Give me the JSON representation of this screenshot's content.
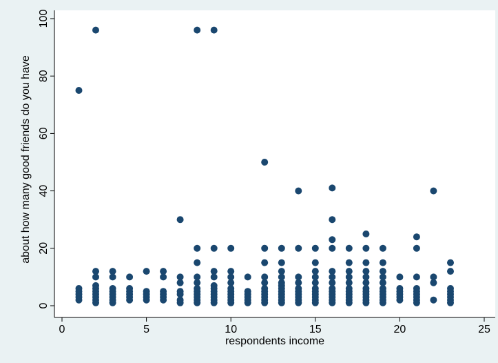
{
  "chart_data": {
    "type": "scatter",
    "title": "",
    "xlabel": "respondents income",
    "ylabel": "about how many good friends do you have",
    "xlim": [
      0,
      25
    ],
    "ylim": [
      0,
      100
    ],
    "xticks": [
      0,
      5,
      10,
      15,
      20,
      25
    ],
    "yticks": [
      0,
      20,
      40,
      60,
      80,
      100
    ],
    "grid": false,
    "colors": {
      "background": "#eaf2f3",
      "plot_background": "#ffffff",
      "marker": "#1a476f",
      "axis": "#000000"
    },
    "points": [
      [
        1,
        75
      ],
      [
        1,
        6
      ],
      [
        1,
        5
      ],
      [
        1,
        4
      ],
      [
        1,
        3
      ],
      [
        1,
        2
      ],
      [
        2,
        96
      ],
      [
        2,
        12
      ],
      [
        2,
        10
      ],
      [
        2,
        7
      ],
      [
        2,
        6
      ],
      [
        2,
        5
      ],
      [
        2,
        4
      ],
      [
        2,
        3
      ],
      [
        2,
        2
      ],
      [
        2,
        1
      ],
      [
        3,
        12
      ],
      [
        3,
        10
      ],
      [
        3,
        6
      ],
      [
        3,
        5
      ],
      [
        3,
        4
      ],
      [
        3,
        3
      ],
      [
        3,
        2
      ],
      [
        3,
        1
      ],
      [
        4,
        10
      ],
      [
        4,
        6
      ],
      [
        4,
        5
      ],
      [
        4,
        4
      ],
      [
        4,
        3
      ],
      [
        4,
        2
      ],
      [
        5,
        12
      ],
      [
        5,
        5
      ],
      [
        5,
        4
      ],
      [
        5,
        3
      ],
      [
        5,
        2
      ],
      [
        6,
        12
      ],
      [
        6,
        10
      ],
      [
        6,
        5
      ],
      [
        6,
        4
      ],
      [
        6,
        3
      ],
      [
        6,
        2
      ],
      [
        7,
        30
      ],
      [
        7,
        10
      ],
      [
        7,
        8
      ],
      [
        7,
        5
      ],
      [
        7,
        4
      ],
      [
        7,
        2
      ],
      [
        7,
        1
      ],
      [
        8,
        96
      ],
      [
        8,
        20
      ],
      [
        8,
        15
      ],
      [
        8,
        10
      ],
      [
        8,
        8
      ],
      [
        8,
        6
      ],
      [
        8,
        5
      ],
      [
        8,
        4
      ],
      [
        8,
        3
      ],
      [
        8,
        2
      ],
      [
        8,
        1
      ],
      [
        9,
        96
      ],
      [
        9,
        20
      ],
      [
        9,
        12
      ],
      [
        9,
        10
      ],
      [
        9,
        7
      ],
      [
        9,
        6
      ],
      [
        9,
        5
      ],
      [
        9,
        4
      ],
      [
        9,
        3
      ],
      [
        9,
        2
      ],
      [
        9,
        1
      ],
      [
        10,
        20
      ],
      [
        10,
        12
      ],
      [
        10,
        10
      ],
      [
        10,
        8
      ],
      [
        10,
        6
      ],
      [
        10,
        5
      ],
      [
        10,
        4
      ],
      [
        10,
        3
      ],
      [
        10,
        2
      ],
      [
        10,
        1
      ],
      [
        11,
        10
      ],
      [
        11,
        5
      ],
      [
        11,
        4
      ],
      [
        11,
        3
      ],
      [
        11,
        2
      ],
      [
        11,
        1
      ],
      [
        12,
        50
      ],
      [
        12,
        20
      ],
      [
        12,
        15
      ],
      [
        12,
        10
      ],
      [
        12,
        8
      ],
      [
        12,
        6
      ],
      [
        12,
        5
      ],
      [
        12,
        4
      ],
      [
        12,
        3
      ],
      [
        12,
        2
      ],
      [
        12,
        1
      ],
      [
        13,
        20
      ],
      [
        13,
        15
      ],
      [
        13,
        12
      ],
      [
        13,
        10
      ],
      [
        13,
        8
      ],
      [
        13,
        7
      ],
      [
        13,
        6
      ],
      [
        13,
        5
      ],
      [
        13,
        4
      ],
      [
        13,
        3
      ],
      [
        13,
        2
      ],
      [
        13,
        1
      ],
      [
        14,
        40
      ],
      [
        14,
        20
      ],
      [
        14,
        10
      ],
      [
        14,
        8
      ],
      [
        14,
        6
      ],
      [
        14,
        5
      ],
      [
        14,
        4
      ],
      [
        14,
        3
      ],
      [
        14,
        2
      ],
      [
        14,
        1
      ],
      [
        15,
        20
      ],
      [
        15,
        15
      ],
      [
        15,
        12
      ],
      [
        15,
        10
      ],
      [
        15,
        8
      ],
      [
        15,
        6
      ],
      [
        15,
        5
      ],
      [
        15,
        4
      ],
      [
        15,
        3
      ],
      [
        15,
        2
      ],
      [
        15,
        1
      ],
      [
        16,
        41
      ],
      [
        16,
        30
      ],
      [
        16,
        23
      ],
      [
        16,
        20
      ],
      [
        16,
        12
      ],
      [
        16,
        10
      ],
      [
        16,
        8
      ],
      [
        16,
        6
      ],
      [
        16,
        5
      ],
      [
        16,
        4
      ],
      [
        16,
        3
      ],
      [
        16,
        2
      ],
      [
        16,
        1
      ],
      [
        17,
        20
      ],
      [
        17,
        15
      ],
      [
        17,
        12
      ],
      [
        17,
        10
      ],
      [
        17,
        8
      ],
      [
        17,
        6
      ],
      [
        17,
        5
      ],
      [
        17,
        4
      ],
      [
        17,
        3
      ],
      [
        17,
        2
      ],
      [
        17,
        1
      ],
      [
        18,
        25
      ],
      [
        18,
        20
      ],
      [
        18,
        15
      ],
      [
        18,
        12
      ],
      [
        18,
        10
      ],
      [
        18,
        8
      ],
      [
        18,
        6
      ],
      [
        18,
        5
      ],
      [
        18,
        4
      ],
      [
        18,
        3
      ],
      [
        18,
        2
      ],
      [
        18,
        1
      ],
      [
        19,
        20
      ],
      [
        19,
        15
      ],
      [
        19,
        12
      ],
      [
        19,
        10
      ],
      [
        19,
        8
      ],
      [
        19,
        6
      ],
      [
        19,
        5
      ],
      [
        19,
        4
      ],
      [
        19,
        3
      ],
      [
        19,
        2
      ],
      [
        19,
        1
      ],
      [
        20,
        10
      ],
      [
        20,
        6
      ],
      [
        20,
        5
      ],
      [
        20,
        4
      ],
      [
        20,
        3
      ],
      [
        20,
        2
      ],
      [
        21,
        24
      ],
      [
        21,
        20
      ],
      [
        21,
        10
      ],
      [
        21,
        6
      ],
      [
        21,
        5
      ],
      [
        21,
        4
      ],
      [
        21,
        3
      ],
      [
        21,
        2
      ],
      [
        21,
        1
      ],
      [
        22,
        40
      ],
      [
        22,
        10
      ],
      [
        22,
        8
      ],
      [
        22,
        2
      ],
      [
        23,
        15
      ],
      [
        23,
        12
      ],
      [
        23,
        6
      ],
      [
        23,
        5
      ],
      [
        23,
        4
      ],
      [
        23,
        3
      ],
      [
        23,
        2
      ],
      [
        23,
        1
      ]
    ]
  }
}
